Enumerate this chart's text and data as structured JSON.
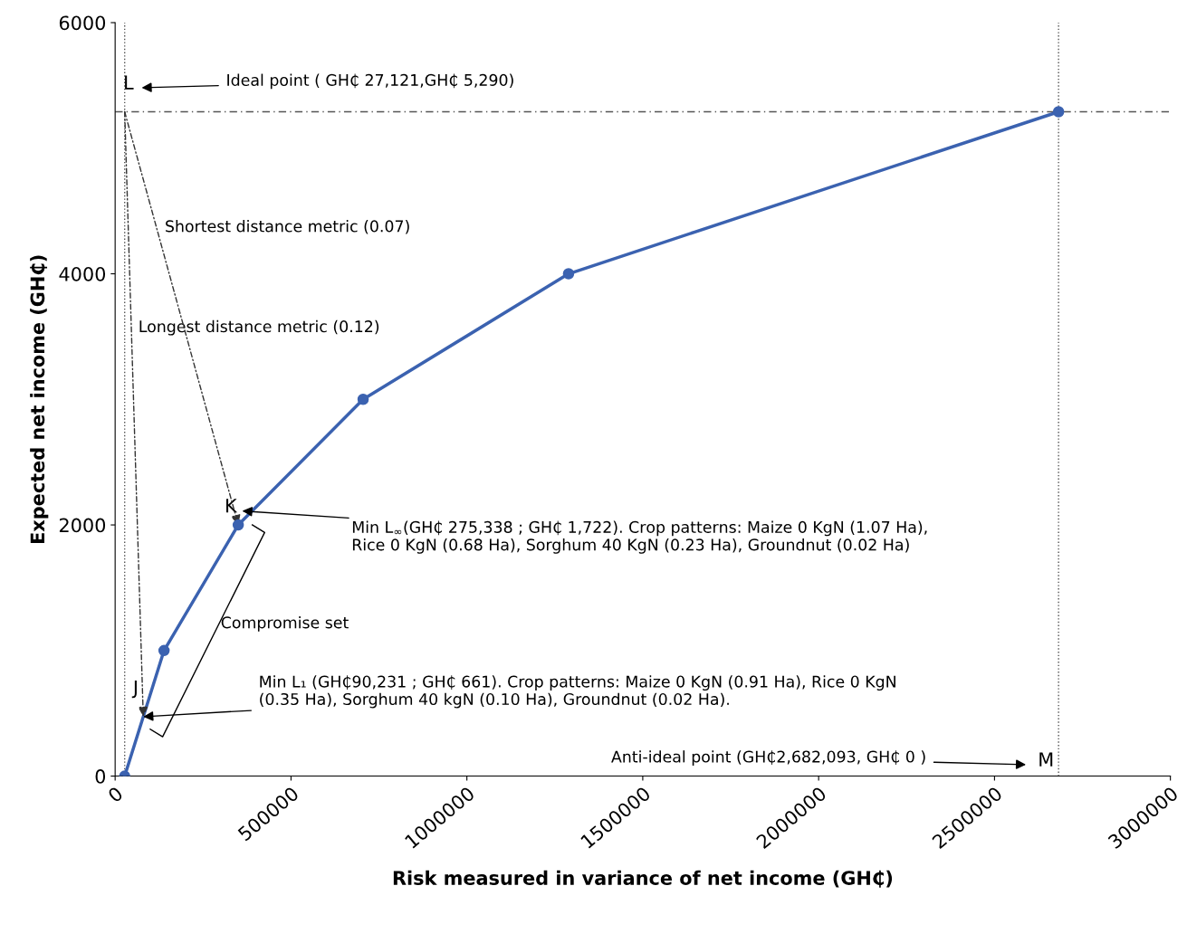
{
  "chart_data": {
    "type": "line",
    "xlabel": "Risk measured in variance of net income (GH₵)",
    "ylabel": "Expected net income (GH₵)",
    "x": [
      27121,
      139000,
      350000,
      705000,
      1289000,
      2682093
    ],
    "series": [
      {
        "color": "#3b62b0",
        "values": [
          0,
          1000,
          2000,
          3000,
          4000,
          5290
        ]
      }
    ],
    "marker": "circle",
    "line_style": "solid",
    "xlim": [
      0,
      3000000
    ],
    "ylim": [
      0,
      6000
    ],
    "xticks": [
      0,
      500000,
      1000000,
      1500000,
      2000000,
      2500000,
      3000000
    ],
    "yticks": [
      0,
      2000,
      4000,
      6000
    ],
    "grid": false,
    "ref_lines": [
      {
        "axis": "y",
        "value": 5290,
        "color": "#555555",
        "line_style": "dashed"
      },
      {
        "axis": "x",
        "value": 2682093,
        "color": "#555555",
        "line_style": "dotted"
      },
      {
        "axis": "x",
        "value": 27121,
        "color": "#555555",
        "line_style": "dotted"
      }
    ],
    "annotations": [
      {
        "text": "L",
        "x": 27121,
        "y": 5290
      },
      "Ideal point ( GH₵ 27,121,GH₵ 5,290)",
      "Shortest distance metric (0.07)",
      "Longest distance metric (0.12)",
      {
        "text": "K",
        "x": 350000,
        "y": 2000
      },
      "Min L$_{∞}$(GH₵ 275,338 ; GH₵ 1,722). Crop patterns: Maize 0 KgN (1.07 Ha),\nRice 0 KgN (0.68 Ha), Sorghum 40 KgN (0.23 Ha), Groundnut (0.02 Ha)",
      "Compromise set",
      {
        "text": "J",
        "x": 80000,
        "y": 473
      },
      {
        "text": "Min L₁ (GH₵90,231 ; GH₵ 661). Crop patterns: Maize 0 KgN (0.91 Ha), Rice 0 KgN\n(0.35 Ha), Sorghum 40 kgN (0.10 Ha), Groundnut (0.02 Ha).",
        "x": 80000,
        "y": 473
      },
      "Anti-ideal point (GH₵2,682,093, GH₵ 0 )",
      {
        "text": "M",
        "x": 2682093,
        "y": 0
      }
    ]
  }
}
